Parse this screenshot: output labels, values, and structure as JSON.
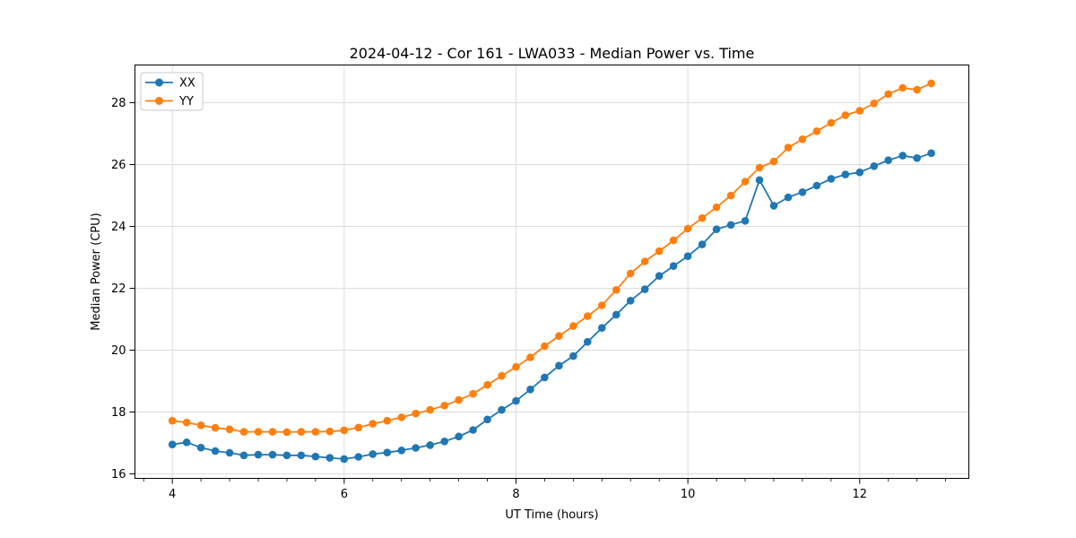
{
  "figure": {
    "background": "#ffffff",
    "text_color": "#000000",
    "grid_color": "#dcdcdc",
    "spine_color": "#000000"
  },
  "chart_data": {
    "type": "line",
    "title": "2024-04-12 - Cor 161 - LWA033 - Median Power vs. Time",
    "xlabel": "UT Time (hours)",
    "ylabel": "Median Power (CPU)",
    "xlim": [
      3.565,
      13.27
    ],
    "ylim": [
      15.855,
      29.22
    ],
    "xticks": [
      4,
      6,
      8,
      10,
      12
    ],
    "yticks": [
      16,
      18,
      20,
      22,
      24,
      26,
      28
    ],
    "x_minor_tick_step": 0.3333,
    "grid": true,
    "legend_position": "upper-left",
    "x": [
      4.0,
      4.167,
      4.333,
      4.5,
      4.667,
      4.833,
      5.0,
      5.167,
      5.333,
      5.5,
      5.667,
      5.833,
      6.0,
      6.167,
      6.333,
      6.5,
      6.667,
      6.833,
      7.0,
      7.167,
      7.333,
      7.5,
      7.667,
      7.833,
      8.0,
      8.167,
      8.333,
      8.5,
      8.667,
      8.833,
      9.0,
      9.167,
      9.333,
      9.5,
      9.667,
      9.833,
      10.0,
      10.167,
      10.333,
      10.5,
      10.667,
      10.833,
      11.0,
      11.167,
      11.333,
      11.5,
      11.667,
      11.833,
      12.0,
      12.167,
      12.333,
      12.5,
      12.667,
      12.833
    ],
    "series": [
      {
        "name": "XX",
        "color": "#1f77b4",
        "marker": "circle",
        "values": [
          16.95,
          17.02,
          16.85,
          16.74,
          16.68,
          16.6,
          16.62,
          16.62,
          16.6,
          16.6,
          16.56,
          16.52,
          16.48,
          16.55,
          16.64,
          16.69,
          16.76,
          16.84,
          16.93,
          17.05,
          17.21,
          17.42,
          17.76,
          18.07,
          18.36,
          18.73,
          19.12,
          19.5,
          19.81,
          20.27,
          20.72,
          21.15,
          21.6,
          21.97,
          22.4,
          22.72,
          23.04,
          23.42,
          23.91,
          24.05,
          24.18,
          25.5,
          24.67,
          24.94,
          25.11,
          25.32,
          25.54,
          25.68,
          25.75,
          25.95,
          26.14,
          26.29,
          26.21,
          26.37
        ]
      },
      {
        "name": "YY",
        "color": "#ff7f0e",
        "marker": "circle",
        "values": [
          17.72,
          17.66,
          17.57,
          17.49,
          17.44,
          17.36,
          17.36,
          17.36,
          17.35,
          17.36,
          17.36,
          17.37,
          17.41,
          17.5,
          17.62,
          17.72,
          17.83,
          17.95,
          18.07,
          18.21,
          18.39,
          18.59,
          18.88,
          19.17,
          19.46,
          19.77,
          20.13,
          20.46,
          20.78,
          21.1,
          21.45,
          21.95,
          22.48,
          22.87,
          23.2,
          23.55,
          23.93,
          24.27,
          24.62,
          25.0,
          25.45,
          25.9,
          26.1,
          26.55,
          26.82,
          27.08,
          27.35,
          27.6,
          27.74,
          27.98,
          28.28,
          28.48,
          28.42,
          28.63
        ]
      }
    ]
  }
}
